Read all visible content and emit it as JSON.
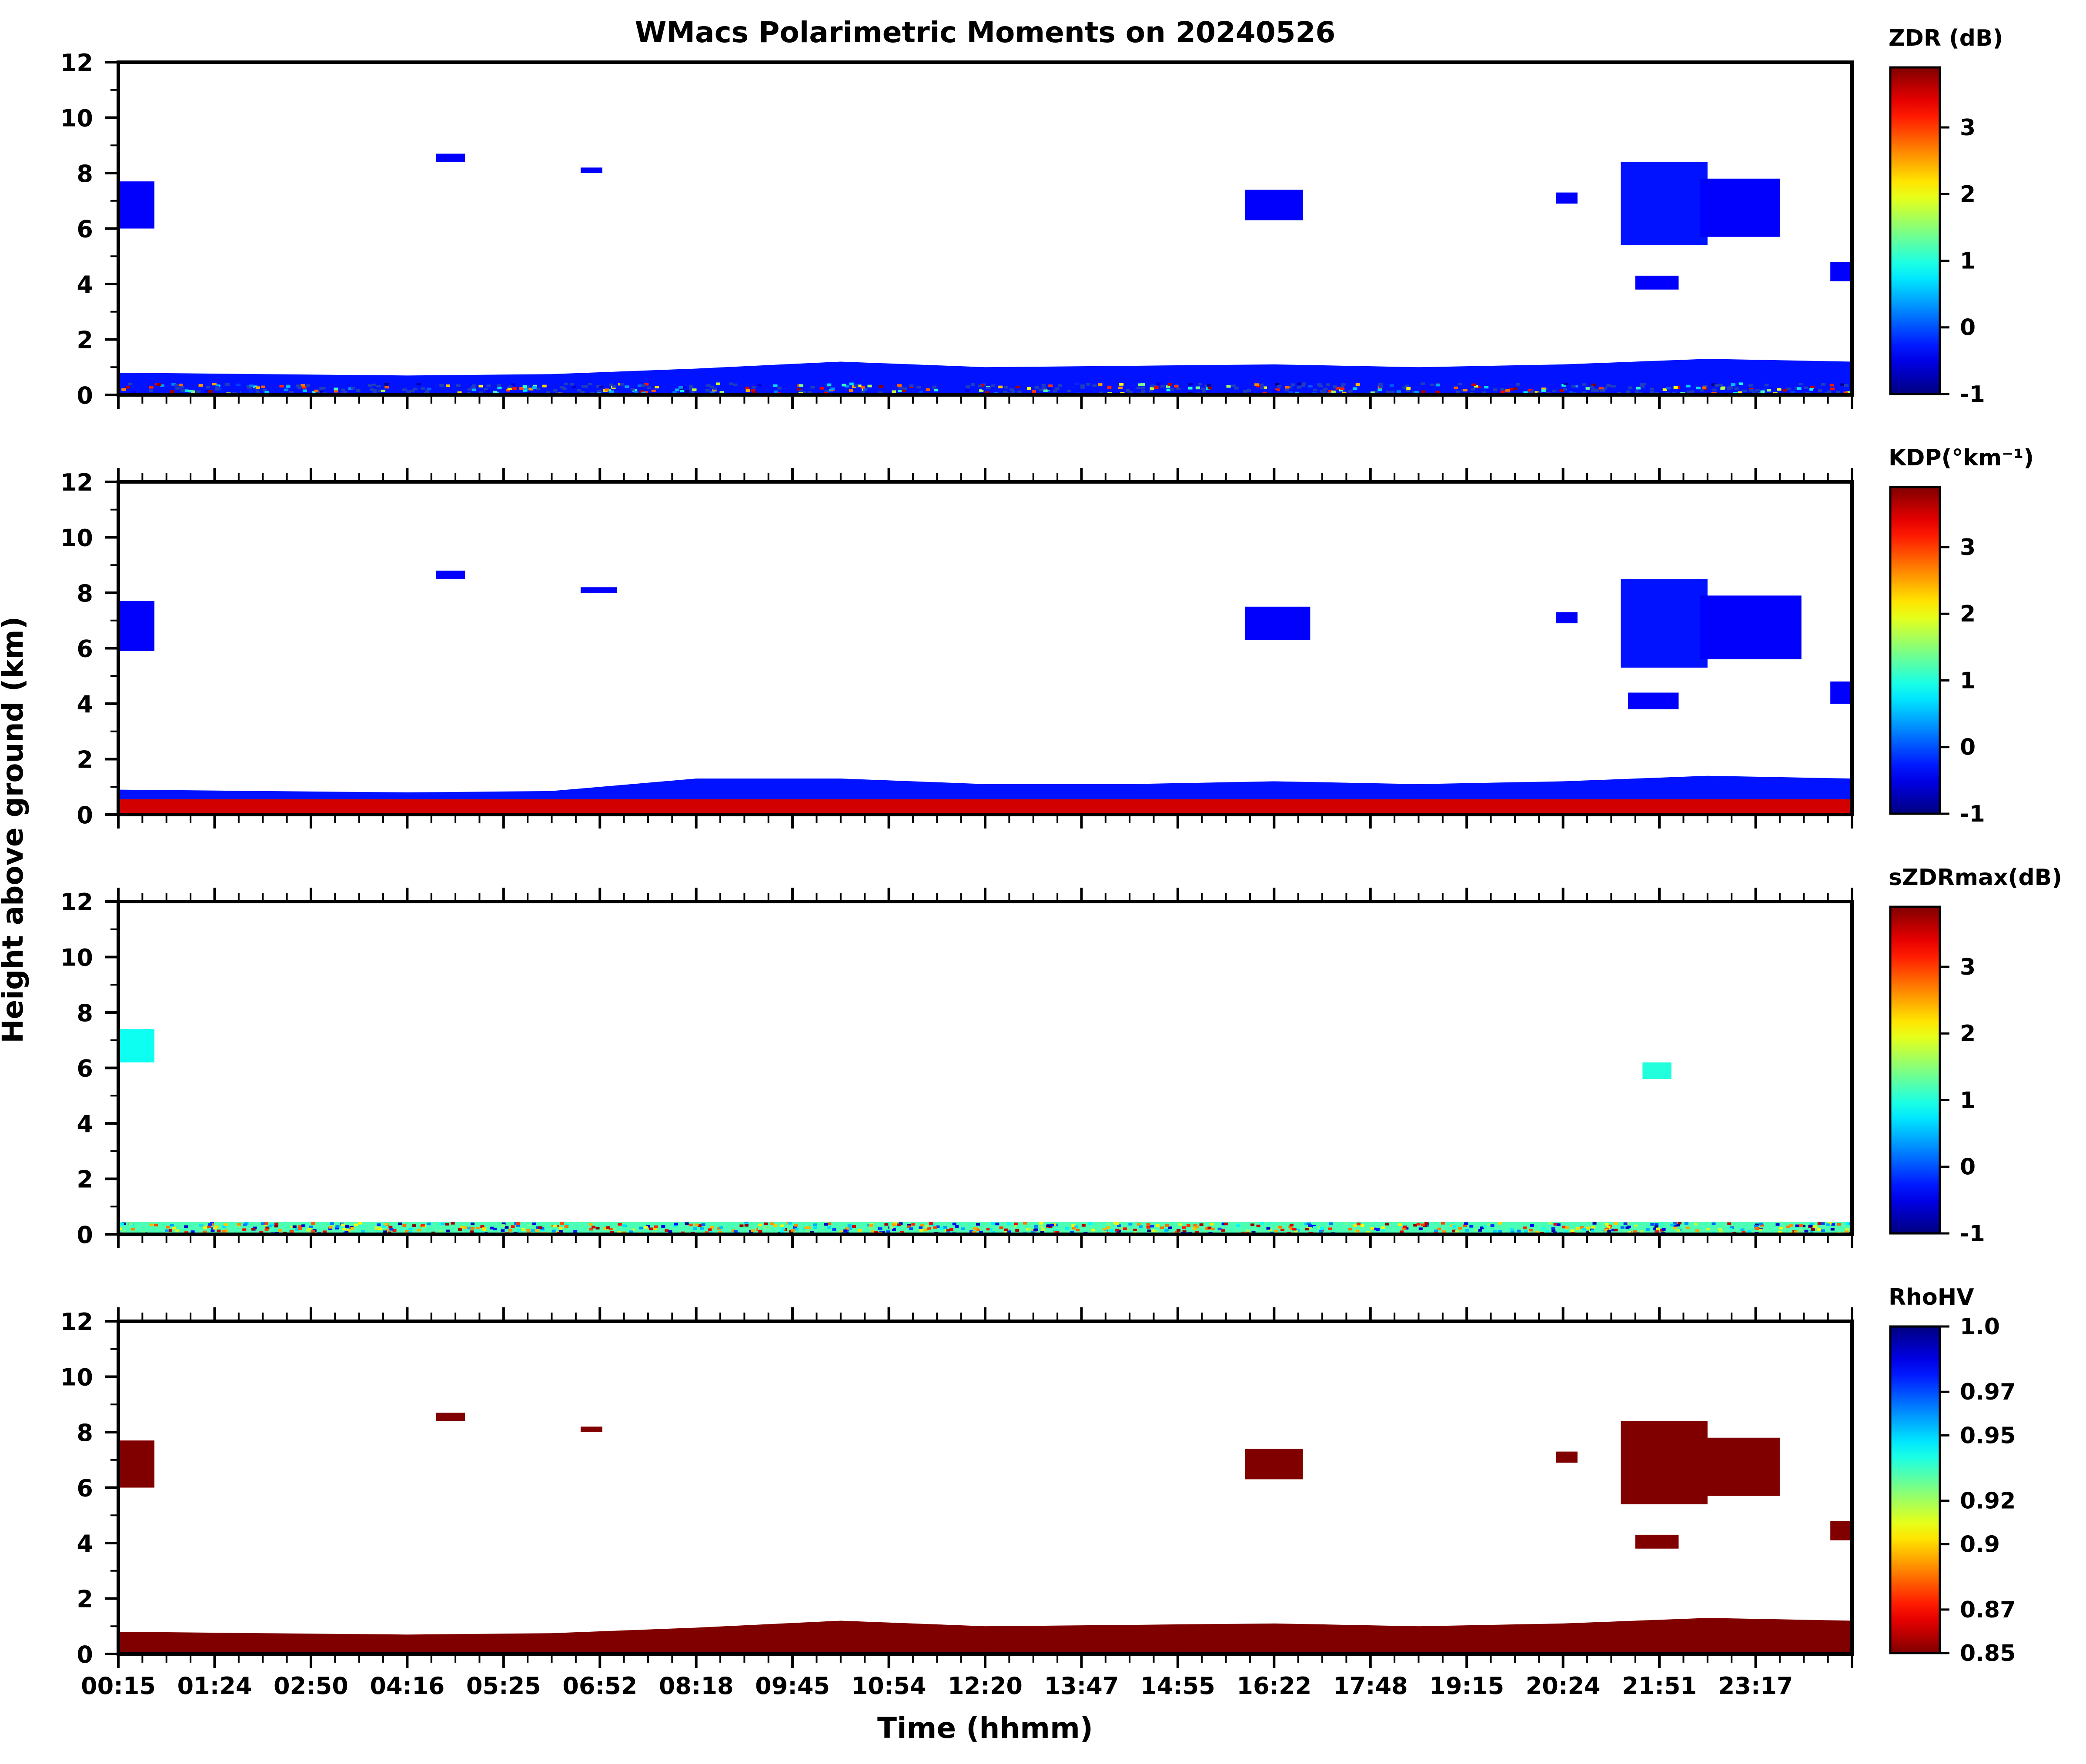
{
  "chart_data": {
    "type": "heatmap",
    "title": "WMacs Polarimetric Moments on 20240526",
    "xlabel": "Time (hhmm)",
    "ylabel": "Height above ground (km)",
    "ylim": [
      0,
      12
    ],
    "yticks": [
      "0",
      "2",
      "4",
      "6",
      "8",
      "10",
      "12"
    ],
    "xlim": [
      0,
      24
    ],
    "xtick_labels": [
      "00:15",
      "01:24",
      "02:50",
      "04:16",
      "05:25",
      "06:52",
      "08:18",
      "09:45",
      "10:54",
      "12:20",
      "13:47",
      "14:55",
      "16:22",
      "17:48",
      "19:15",
      "20:24",
      "21:51",
      "23:17"
    ],
    "panels": [
      {
        "id": "zdr",
        "colorbar_label": "ZDR (dB)",
        "colorbar_ticks": [
          "-1",
          "0",
          "1",
          "2",
          "3"
        ],
        "colorbar_range": [
          -1,
          3.9
        ],
        "colormap": "jet",
        "layers": [
          {
            "name": "boundary layer",
            "x": [
              0.0,
              2,
              4,
              6,
              8,
              10,
              12,
              14,
              16,
              18,
              20,
              22,
              24.0
            ],
            "top": [
              0.8,
              0.75,
              0.7,
              0.75,
              0.95,
              1.2,
              1.0,
              1.05,
              1.1,
              1.0,
              1.1,
              1.3,
              1.2
            ],
            "value": -0.3,
            "speckle": true
          },
          {
            "name": "cloud 00:15",
            "x": [
              0.0,
              0.5
            ],
            "bottom": 6.0,
            "top": 7.7,
            "value": -0.4
          },
          {
            "name": "cloud 04:20",
            "x": [
              4.4,
              4.8
            ],
            "bottom": 8.4,
            "top": 8.7,
            "value": -0.4
          },
          {
            "name": "cloud 06:40",
            "x": [
              6.4,
              6.7
            ],
            "bottom": 8.0,
            "top": 8.2,
            "value": -0.4
          },
          {
            "name": "cloud 15:35",
            "x": [
              15.6,
              16.4
            ],
            "bottom": 6.3,
            "top": 7.4,
            "value": -0.4
          },
          {
            "name": "cloud 20:00",
            "x": [
              19.9,
              20.2
            ],
            "bottom": 6.9,
            "top": 7.3,
            "value": -0.4
          },
          {
            "name": "cloud 21:00",
            "x": [
              20.8,
              22.0
            ],
            "bottom": 5.4,
            "top": 8.4,
            "value": -0.3
          },
          {
            "name": "cloud 22:00",
            "x": [
              21.9,
              23.0
            ],
            "bottom": 5.7,
            "top": 7.8,
            "value": -0.4
          },
          {
            "name": "cloud 21:10 low",
            "x": [
              21.0,
              21.6
            ],
            "bottom": 3.8,
            "top": 4.3,
            "value": -0.4
          },
          {
            "name": "cloud 23:50",
            "x": [
              23.7,
              24.0
            ],
            "bottom": 4.1,
            "top": 4.8,
            "value": -0.4
          }
        ]
      },
      {
        "id": "kdp",
        "colorbar_label": "KDP(°km⁻¹)",
        "colorbar_ticks": [
          "-1",
          "0",
          "1",
          "2",
          "3"
        ],
        "colorbar_range": [
          -1,
          3.9
        ],
        "colormap": "jet",
        "layers": [
          {
            "name": "boundary layer",
            "x": [
              0.0,
              2,
              4,
              6,
              8,
              10,
              12,
              14,
              16,
              18,
              20,
              22,
              24.0
            ],
            "top": [
              0.9,
              0.85,
              0.8,
              0.85,
              1.3,
              1.3,
              1.1,
              1.1,
              1.2,
              1.1,
              1.2,
              1.4,
              1.3
            ],
            "value": -0.3,
            "speckle": false
          },
          {
            "name": "near-surface mixed",
            "x": [
              0.0,
              24.0
            ],
            "bottom": 0.0,
            "top": 0.55,
            "value": 3.5
          },
          {
            "name": "cloud 00:15",
            "x": [
              0.0,
              0.5
            ],
            "bottom": 5.9,
            "top": 7.7,
            "value": -0.4
          },
          {
            "name": "cloud 04:20",
            "x": [
              4.4,
              4.8
            ],
            "bottom": 8.5,
            "top": 8.8,
            "value": -0.4
          },
          {
            "name": "cloud 06:40",
            "x": [
              6.4,
              6.9
            ],
            "bottom": 8.0,
            "top": 8.2,
            "value": -0.4
          },
          {
            "name": "cloud 15:35",
            "x": [
              15.6,
              16.5
            ],
            "bottom": 6.3,
            "top": 7.5,
            "value": -0.4
          },
          {
            "name": "cloud 20:00",
            "x": [
              19.9,
              20.2
            ],
            "bottom": 6.9,
            "top": 7.3,
            "value": -0.4
          },
          {
            "name": "cloud 21:00",
            "x": [
              20.8,
              22.0
            ],
            "bottom": 5.3,
            "top": 8.5,
            "value": -0.3
          },
          {
            "name": "cloud 22:00",
            "x": [
              21.9,
              23.3
            ],
            "bottom": 5.6,
            "top": 7.9,
            "value": -0.4
          },
          {
            "name": "cloud 21:10 low",
            "x": [
              20.9,
              21.6
            ],
            "bottom": 3.8,
            "top": 4.4,
            "value": -0.4
          },
          {
            "name": "cloud 23:50",
            "x": [
              23.7,
              24.0
            ],
            "bottom": 4.0,
            "top": 4.8,
            "value": -0.4
          }
        ]
      },
      {
        "id": "szdrmax",
        "colorbar_label": "sZDRmax(dB)",
        "colorbar_ticks": [
          "-1",
          "0",
          "1",
          "2",
          "3"
        ],
        "colorbar_range": [
          -1,
          3.9
        ],
        "colormap": "jet",
        "layers": [
          {
            "name": "near-surface speckle",
            "x": [
              0.0,
              24.0
            ],
            "bottom": 0.0,
            "top": 0.45,
            "value": 1.2,
            "speckle": true
          },
          {
            "name": "cloud 00:15",
            "x": [
              0.0,
              0.5
            ],
            "bottom": 6.2,
            "top": 7.4,
            "value": 0.9
          },
          {
            "name": "cloud 21:00",
            "x": [
              21.1,
              21.5
            ],
            "bottom": 5.6,
            "top": 6.2,
            "value": 1.0
          }
        ]
      },
      {
        "id": "rhohv",
        "colorbar_label": "RhoHV",
        "colorbar_ticks": [
          "0.85",
          "0.87",
          "0.9",
          "0.92",
          "0.95",
          "0.97",
          "1.0"
        ],
        "colorbar_range": [
          0.85,
          1.0
        ],
        "colormap": "jet_r",
        "layers": [
          {
            "name": "boundary layer",
            "x": [
              0.0,
              2,
              4,
              6,
              8,
              10,
              12,
              14,
              16,
              18,
              20,
              22,
              24.0
            ],
            "top": [
              0.8,
              0.75,
              0.7,
              0.75,
              0.95,
              1.2,
              1.0,
              1.05,
              1.1,
              1.0,
              1.1,
              1.3,
              1.2
            ],
            "value": 0.85,
            "speckle": true
          },
          {
            "name": "cloud 00:15",
            "x": [
              0.0,
              0.5
            ],
            "bottom": 6.0,
            "top": 7.7,
            "value": 0.85
          },
          {
            "name": "cloud 04:20",
            "x": [
              4.4,
              4.8
            ],
            "bottom": 8.4,
            "top": 8.7,
            "value": 0.85
          },
          {
            "name": "cloud 06:40",
            "x": [
              6.4,
              6.7
            ],
            "bottom": 8.0,
            "top": 8.2,
            "value": 0.85
          },
          {
            "name": "cloud 15:35",
            "x": [
              15.6,
              16.4
            ],
            "bottom": 6.3,
            "top": 7.4,
            "value": 0.85
          },
          {
            "name": "cloud 20:00",
            "x": [
              19.9,
              20.2
            ],
            "bottom": 6.9,
            "top": 7.3,
            "value": 0.85
          },
          {
            "name": "cloud 21:00",
            "x": [
              20.8,
              22.0
            ],
            "bottom": 5.4,
            "top": 8.4,
            "value": 0.85
          },
          {
            "name": "cloud 22:00",
            "x": [
              21.9,
              23.0
            ],
            "bottom": 5.7,
            "top": 7.8,
            "value": 0.85
          },
          {
            "name": "cloud 21:10 low",
            "x": [
              21.0,
              21.6
            ],
            "bottom": 3.8,
            "top": 4.3,
            "value": 0.85
          },
          {
            "name": "cloud 23:50",
            "x": [
              23.7,
              24.0
            ],
            "bottom": 4.1,
            "top": 4.8,
            "value": 0.85
          }
        ]
      }
    ]
  }
}
